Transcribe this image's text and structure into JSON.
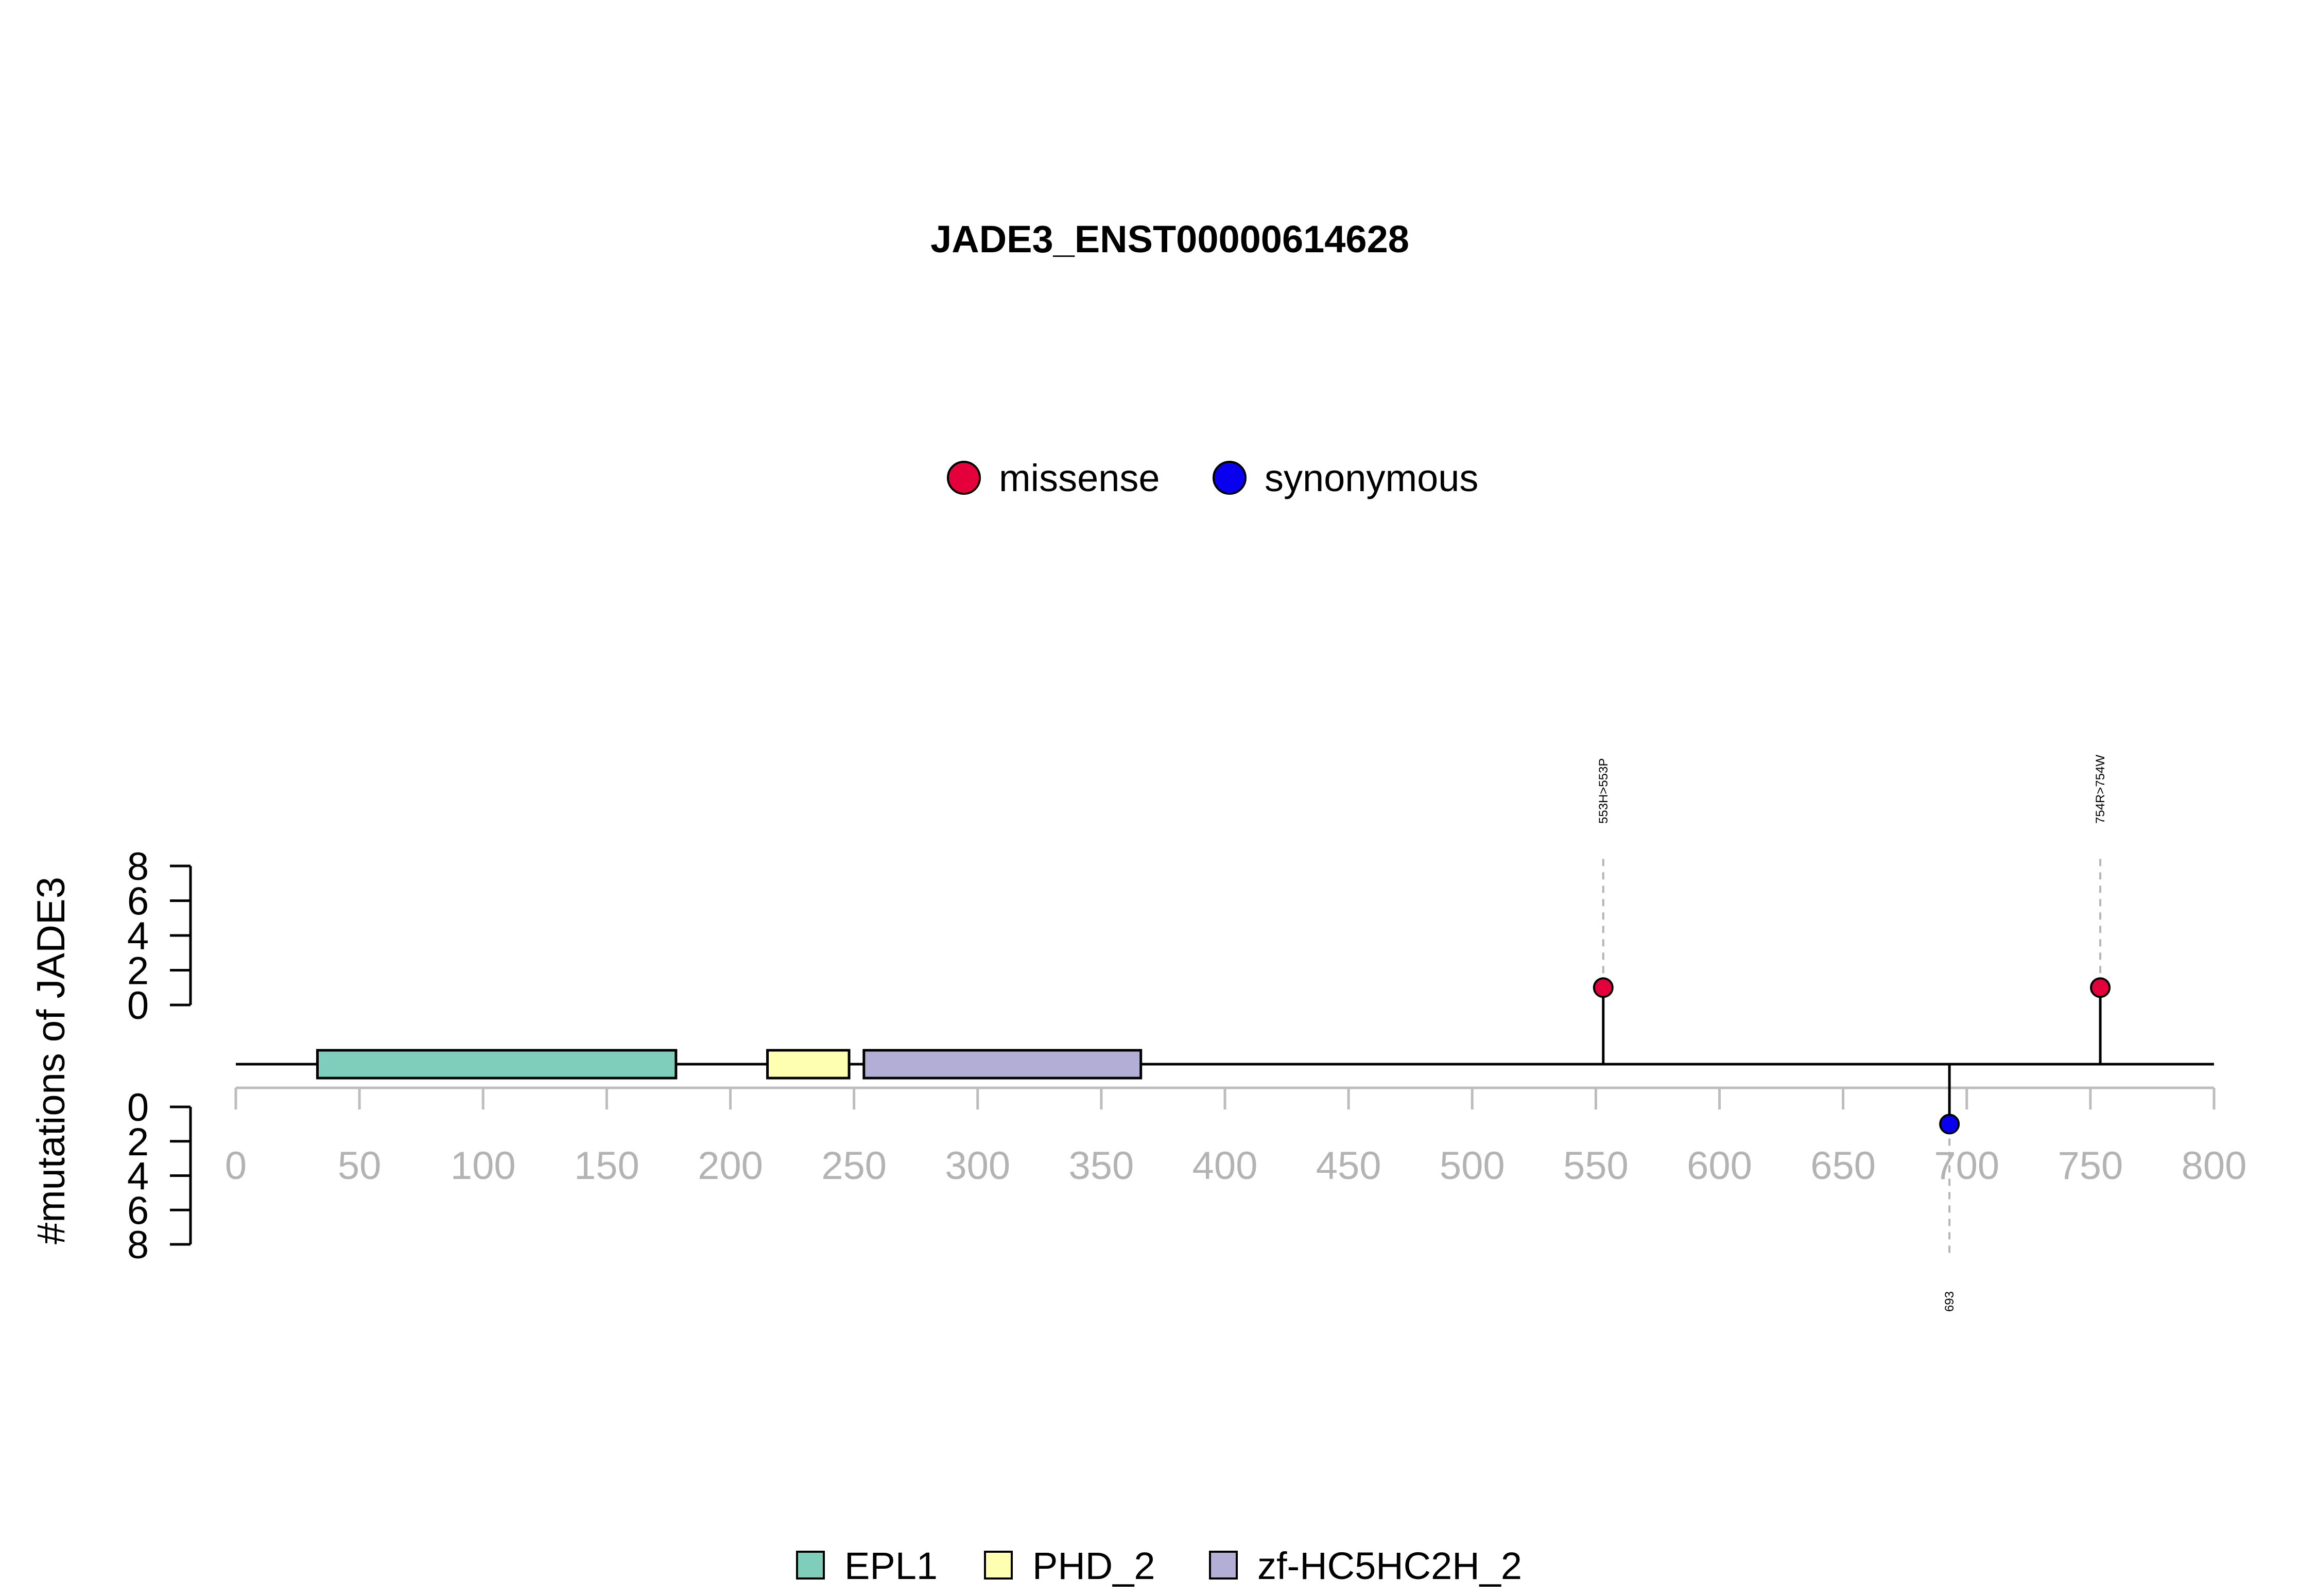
{
  "chart_data": {
    "type": "lollipop",
    "title": "JADE3_ENST00000614628",
    "ylabel": "#mutations of JADE3",
    "xlim": [
      0,
      800
    ],
    "x_ticks": [
      0,
      50,
      100,
      150,
      200,
      250,
      300,
      350,
      400,
      450,
      500,
      550,
      600,
      650,
      700,
      750,
      800
    ],
    "y_ticks_upper": [
      0,
      2,
      4,
      6,
      8
    ],
    "y_ticks_lower": [
      0,
      2,
      4,
      6,
      8
    ],
    "mutation_legend": [
      {
        "name": "missense",
        "color": "#e4003a"
      },
      {
        "name": "synonymous",
        "color": "#0a00f0"
      }
    ],
    "mutations": [
      {
        "position": 553,
        "count": 1,
        "label": "553H>553P",
        "type": "missense",
        "side": "up"
      },
      {
        "position": 754,
        "count": 1,
        "label": "754R>754W",
        "type": "missense",
        "side": "up"
      },
      {
        "position": 693,
        "count": 1,
        "label": "693",
        "type": "synonymous",
        "side": "down"
      }
    ],
    "domains": [
      {
        "name": "EPL1",
        "start": 33,
        "end": 178,
        "color": "#7fcdbb"
      },
      {
        "name": "PHD_2",
        "start": 215,
        "end": 248,
        "color": "#ffffb2"
      },
      {
        "name": "zf-HC5HC2H_2",
        "start": 254,
        "end": 366,
        "color": "#b3aed6"
      }
    ]
  }
}
